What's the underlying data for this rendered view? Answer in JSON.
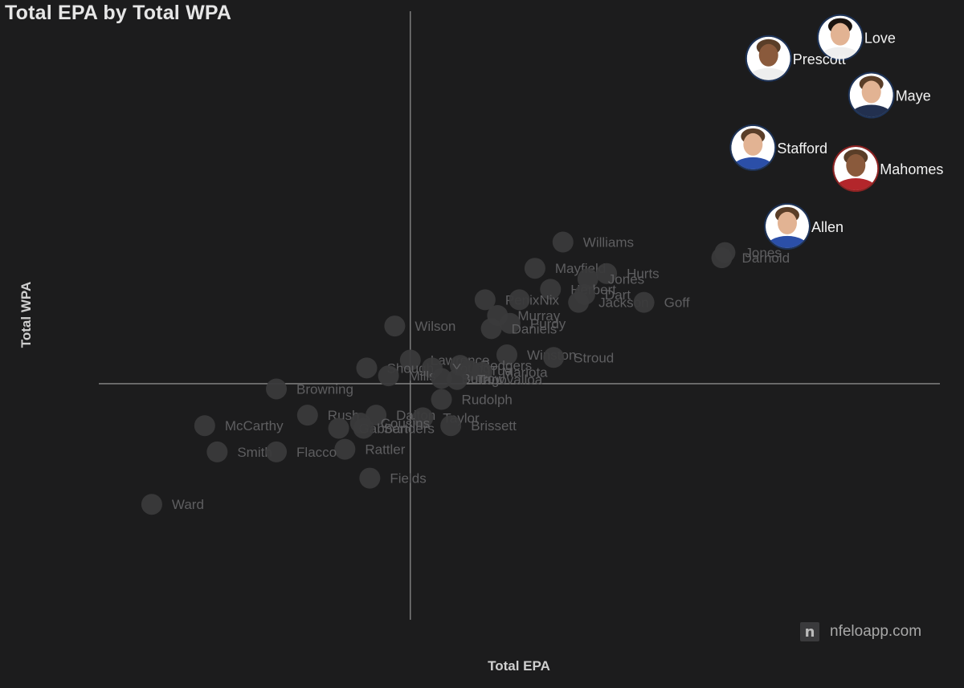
{
  "chart_data": {
    "type": "scatter",
    "title": "Total EPA by Total WPA",
    "xlabel": "Total EPA",
    "ylabel": "Total WPA",
    "xlim": [
      -100,
      170
    ],
    "ylim": [
      -4.5,
      7.1
    ],
    "origin": [
      0,
      0
    ],
    "grid": false,
    "points": [
      {
        "name": "Love",
        "x": 138,
        "y": 6.6,
        "highlight": true
      },
      {
        "name": "Prescott",
        "x": 115,
        "y": 6.2,
        "highlight": true
      },
      {
        "name": "Maye",
        "x": 148,
        "y": 5.5,
        "highlight": true
      },
      {
        "name": "Stafford",
        "x": 110,
        "y": 4.5,
        "highlight": true
      },
      {
        "name": "Mahomes",
        "x": 143,
        "y": 4.1,
        "highlight": true
      },
      {
        "name": "Allen",
        "x": 121,
        "y": 3.0,
        "highlight": true
      },
      {
        "name": "Jones",
        "x": 101,
        "y": 2.5
      },
      {
        "name": "Darnold",
        "x": 100,
        "y": 2.4
      },
      {
        "name": "Williams",
        "x": 49,
        "y": 2.7
      },
      {
        "name": "Mayfield",
        "x": 40,
        "y": 2.2
      },
      {
        "name": "Hurts",
        "x": 63,
        "y": 2.1
      },
      {
        "name": "Jones",
        "x": 57,
        "y": 2.0
      },
      {
        "name": "Herbert",
        "x": 45,
        "y": 1.8
      },
      {
        "name": "Dart",
        "x": 56,
        "y": 1.7
      },
      {
        "name": "Penix",
        "x": 24,
        "y": 1.6
      },
      {
        "name": "Nix",
        "x": 35,
        "y": 1.6
      },
      {
        "name": "Jackson",
        "x": 54,
        "y": 1.55
      },
      {
        "name": "Goff",
        "x": 75,
        "y": 1.55
      },
      {
        "name": "Murray",
        "x": 28,
        "y": 1.3
      },
      {
        "name": "Purdy",
        "x": 32,
        "y": 1.15
      },
      {
        "name": "Daniels",
        "x": 26,
        "y": 1.05
      },
      {
        "name": "Wilson",
        "x": -5,
        "y": 1.1
      },
      {
        "name": "Winston",
        "x": 31,
        "y": 0.55
      },
      {
        "name": "Stroud",
        "x": 46,
        "y": 0.5
      },
      {
        "name": "Lawrence",
        "x": 0,
        "y": 0.45
      },
      {
        "name": "Rodgers",
        "x": 16,
        "y": 0.35
      },
      {
        "name": "Shough",
        "x": -14,
        "y": 0.3
      },
      {
        "name": "Young",
        "x": 7,
        "y": 0.3
      },
      {
        "name": "Tua",
        "x": 19,
        "y": 0.25
      },
      {
        "name": "Mariota",
        "x": 23,
        "y": 0.22
      },
      {
        "name": "Mills",
        "x": -7,
        "y": 0.15
      },
      {
        "name": "Burrow",
        "x": 10,
        "y": 0.1
      },
      {
        "name": "Tagovailoa",
        "x": 15,
        "y": 0.08
      },
      {
        "name": "Browning",
        "x": -43,
        "y": -0.1
      },
      {
        "name": "Rudolph",
        "x": 10,
        "y": -0.3
      },
      {
        "name": "Rush",
        "x": -33,
        "y": -0.6
      },
      {
        "name": "Dalton",
        "x": -11,
        "y": -0.6
      },
      {
        "name": "Taylor",
        "x": 4,
        "y": -0.65
      },
      {
        "name": "Cousins",
        "x": -16,
        "y": -0.75
      },
      {
        "name": "Gabbert",
        "x": -23,
        "y": -0.85
      },
      {
        "name": "Sanders",
        "x": -15,
        "y": -0.85
      },
      {
        "name": "Brissett",
        "x": 13,
        "y": -0.8
      },
      {
        "name": "McCarthy",
        "x": -66,
        "y": -0.8
      },
      {
        "name": "Rattler",
        "x": -21,
        "y": -1.25
      },
      {
        "name": "Smith",
        "x": -62,
        "y": -1.3
      },
      {
        "name": "Flacco",
        "x": -43,
        "y": -1.3
      },
      {
        "name": "Fields",
        "x": -13,
        "y": -1.8
      },
      {
        "name": "Ward",
        "x": -83,
        "y": -2.3
      }
    ]
  },
  "watermark": {
    "logo_letter": "n",
    "text": "nfeloapp.com"
  },
  "colors": {
    "background": "#1c1c1d",
    "dim_point": "#3a3a3b",
    "dim_label": "#5e5e60",
    "axis_line": "#8a8a8a",
    "highlight_border": "#1e3357",
    "mahomes_border": "#8a2222"
  }
}
